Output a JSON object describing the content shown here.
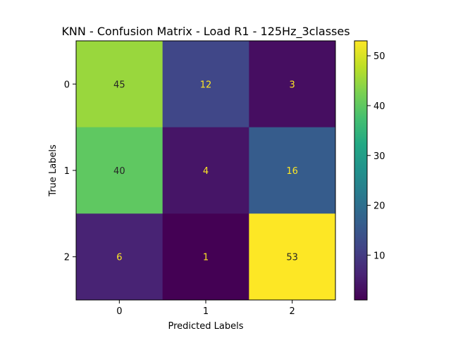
{
  "chart_data": {
    "type": "heatmap",
    "title": "KNN - Confusion Matrix - Load R1 - 125Hz_3classes",
    "xlabel": "Predicted Labels",
    "ylabel": "True Labels",
    "x_categories": [
      "0",
      "1",
      "2"
    ],
    "y_categories": [
      "0",
      "1",
      "2"
    ],
    "matrix": [
      [
        45,
        12,
        3
      ],
      [
        40,
        4,
        16
      ],
      [
        6,
        1,
        53
      ]
    ],
    "colorscale": "viridis",
    "color_range": [
      1,
      53
    ],
    "colorbar_ticks": [
      10,
      20,
      30,
      40,
      50
    ],
    "colorbar_tick_labels": [
      "10",
      "20",
      "30",
      "40",
      "50"
    ],
    "text_color_dark": "#262626",
    "text_color_light": "#fde725"
  }
}
